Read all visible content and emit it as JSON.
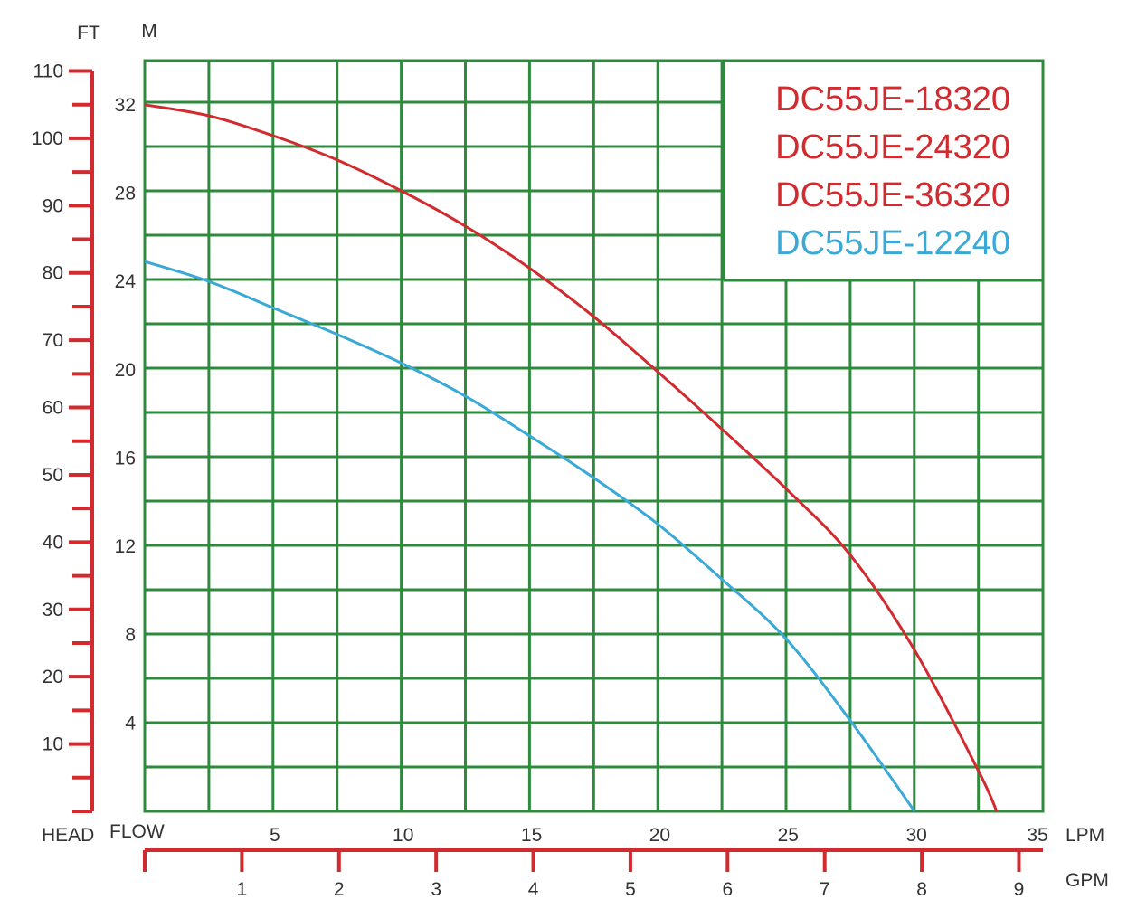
{
  "chart_data": {
    "type": "line",
    "left_axis": {
      "unit": "FT",
      "ticks": [
        10,
        20,
        30,
        40,
        50,
        60,
        70,
        80,
        90,
        100,
        110
      ],
      "range": [
        0,
        110
      ],
      "minor_step": 5,
      "color": "#d12a2f"
    },
    "right_axis": {
      "unit": "M",
      "ticks": [
        4,
        8,
        12,
        16,
        20,
        24,
        28,
        32
      ],
      "range": [
        0,
        34
      ]
    },
    "x_axis": {
      "unit": "LPM",
      "ticks": [
        5,
        10,
        15,
        20,
        25,
        30,
        35
      ],
      "range": [
        0,
        35
      ],
      "label_left": "HEAD",
      "label_right": "FLOW"
    },
    "x_axis_secondary": {
      "unit": "GPM",
      "ticks": [
        1,
        2,
        3,
        4,
        5,
        6,
        7,
        8,
        9
      ],
      "color": "#d12a2f"
    },
    "grid": true,
    "grid_color": "#2e8b3e",
    "legend_position": "top-right",
    "series": [
      {
        "name": "DC55JE-18320",
        "color": "#d12a2f",
        "x": [
          0,
          2.5,
          5,
          7.5,
          10,
          12.5,
          15,
          17.5,
          20,
          22.5,
          25,
          27.5,
          30,
          32.5,
          33.2
        ],
        "y": [
          32,
          31.5,
          30.6,
          29.5,
          28.1,
          26.5,
          24.6,
          22.4,
          19.9,
          17.3,
          14.6,
          11.6,
          7.3,
          1.8,
          0
        ]
      },
      {
        "name": "DC55JE-24320",
        "color": "#d12a2f",
        "x": [],
        "y": []
      },
      {
        "name": "DC55JE-36320",
        "color": "#d12a2f",
        "x": [],
        "y": []
      },
      {
        "name": "DC55JE-12240",
        "color": "#3aa9d6",
        "x": [
          0,
          2.5,
          5,
          7.5,
          10,
          12.5,
          15,
          17.5,
          20,
          22.5,
          25,
          27.5,
          30
        ],
        "y": [
          24.9,
          24.0,
          22.8,
          21.6,
          20.3,
          18.8,
          17.0,
          15.1,
          13.0,
          10.5,
          7.8,
          4.1,
          0
        ]
      }
    ]
  }
}
